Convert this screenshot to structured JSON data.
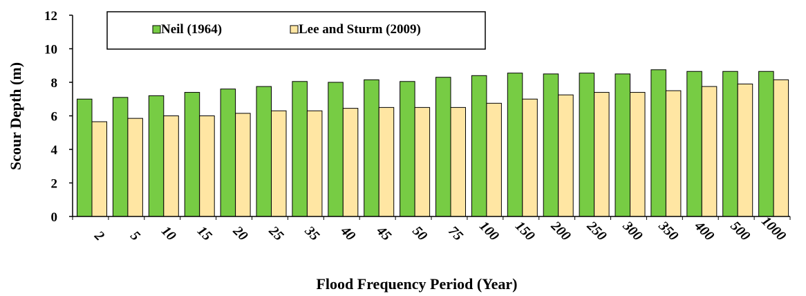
{
  "chart_data": {
    "type": "bar",
    "xlabel": "Flood Frequency Period (Year)",
    "ylabel": "Scour Depth (m)",
    "ylim": [
      0,
      12
    ],
    "yticks": [
      0,
      2,
      4,
      6,
      8,
      10,
      12
    ],
    "grid": false,
    "legend_position": "top",
    "categories": [
      "2",
      "5",
      "10",
      "15",
      "20",
      "25",
      "35",
      "40",
      "45",
      "50",
      "75",
      "100",
      "150",
      "200",
      "250",
      "300",
      "350",
      "400",
      "500",
      "1000"
    ],
    "series": [
      {
        "name": "Neil (1964)",
        "color": "#77cc44",
        "values": [
          7.0,
          7.1,
          7.2,
          7.4,
          7.6,
          7.75,
          8.05,
          8.0,
          8.15,
          8.05,
          8.3,
          8.4,
          8.55,
          8.5,
          8.55,
          8.5,
          8.75,
          8.65,
          8.65,
          8.65
        ]
      },
      {
        "name": "Lee and Sturm (2009)",
        "color": "#ffe6a3",
        "values": [
          5.65,
          5.85,
          6.0,
          6.0,
          6.15,
          6.3,
          6.3,
          6.45,
          6.5,
          6.5,
          6.5,
          6.75,
          7.0,
          7.25,
          7.4,
          7.4,
          7.5,
          7.75,
          7.9,
          8.15
        ]
      }
    ]
  }
}
